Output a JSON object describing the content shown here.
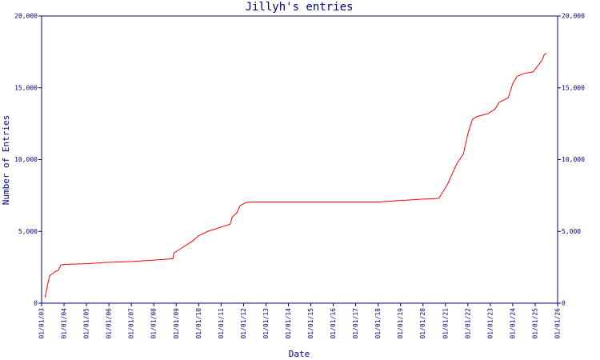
{
  "chart_data": {
    "type": "line",
    "title": "Jillyh's entries",
    "x_label": "Date",
    "y_label": "Number of Entries",
    "x": [
      2003.15,
      2003.35,
      2003.6,
      2003.75,
      2003.85,
      2004.0,
      2005.0,
      2006.0,
      2007.0,
      2008.0,
      2008.85,
      2008.9,
      2009.3,
      2009.7,
      2010.0,
      2010.4,
      2010.8,
      2011.2,
      2011.4,
      2011.5,
      2011.7,
      2011.85,
      2012.1,
      2012.3,
      2018.0,
      2019.0,
      2020.0,
      2020.7,
      2020.9,
      2021.1,
      2021.3,
      2021.5,
      2021.8,
      2022.0,
      2022.2,
      2022.4,
      2022.9,
      2023.2,
      2023.4,
      2023.8,
      2024.0,
      2024.2,
      2024.5,
      2024.9,
      2025.1,
      2025.3,
      2025.4,
      2025.5
    ],
    "series": [
      {
        "name": "Entries",
        "color": "#ff0000",
        "values": [
          400,
          1900,
          2200,
          2300,
          2650,
          2700,
          2750,
          2850,
          2900,
          3000,
          3100,
          3500,
          3900,
          4300,
          4700,
          5000,
          5200,
          5400,
          5500,
          6000,
          6300,
          6800,
          7000,
          7050,
          7050,
          7150,
          7250,
          7300,
          7800,
          8300,
          9000,
          9700,
          10400,
          11800,
          12800,
          13000,
          13200,
          13500,
          14000,
          14300,
          15300,
          15800,
          16000,
          16100,
          16500,
          16900,
          17300,
          17400
        ]
      }
    ],
    "xlim": [
      2003,
      2026
    ],
    "xticks": [
      {
        "value": 2003,
        "label": "01/01/03"
      },
      {
        "value": 2004,
        "label": "01/01/04"
      },
      {
        "value": 2005,
        "label": "01/01/05"
      },
      {
        "value": 2006,
        "label": "01/01/06"
      },
      {
        "value": 2007,
        "label": "01/01/07"
      },
      {
        "value": 2008,
        "label": "01/01/08"
      },
      {
        "value": 2009,
        "label": "01/01/09"
      },
      {
        "value": 2010,
        "label": "01/01/10"
      },
      {
        "value": 2011,
        "label": "01/01/11"
      },
      {
        "value": 2012,
        "label": "01/01/12"
      },
      {
        "value": 2013,
        "label": "01/01/13"
      },
      {
        "value": 2014,
        "label": "01/01/14"
      },
      {
        "value": 2015,
        "label": "01/01/15"
      },
      {
        "value": 2016,
        "label": "01/01/16"
      },
      {
        "value": 2017,
        "label": "01/01/17"
      },
      {
        "value": 2018,
        "label": "01/01/18"
      },
      {
        "value": 2019,
        "label": "01/01/19"
      },
      {
        "value": 2020,
        "label": "01/01/20"
      },
      {
        "value": 2021,
        "label": "01/01/21"
      },
      {
        "value": 2022,
        "label": "01/01/22"
      },
      {
        "value": 2023,
        "label": "01/01/23"
      },
      {
        "value": 2024,
        "label": "01/01/24"
      },
      {
        "value": 2025,
        "label": "01/01/25"
      },
      {
        "value": 2026,
        "label": "01/01/26"
      }
    ],
    "ylim": [
      0,
      20000
    ],
    "yticks": [
      0,
      {
        "value": 5000,
        "label": "5,000"
      },
      {
        "value": 10000,
        "label": "10,000"
      },
      {
        "value": 15000,
        "label": "15,000"
      },
      {
        "value": 20000,
        "label": "20,000"
      }
    ]
  }
}
